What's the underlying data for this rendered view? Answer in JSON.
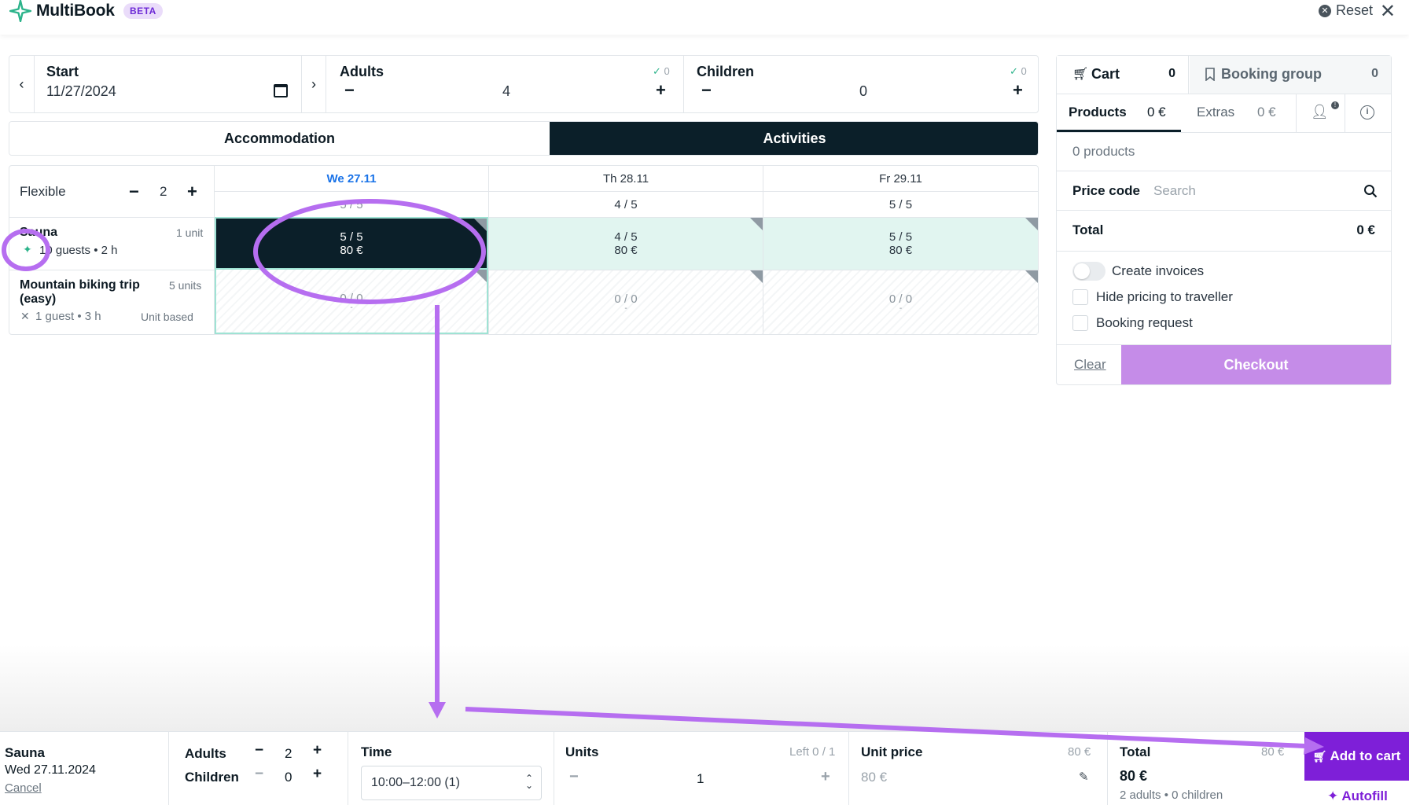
{
  "header": {
    "brand": "MultiBook",
    "badge": "BETA",
    "reset_label": "Reset"
  },
  "filter": {
    "start_label": "Start",
    "start_value": "11/27/2024",
    "adults_label": "Adults",
    "adults_value": "4",
    "adults_check": "0",
    "children_label": "Children",
    "children_value": "0",
    "children_check": "0"
  },
  "tabs": {
    "accommodation": "Accommodation",
    "activities": "Activities"
  },
  "grid": {
    "flexible_label": "Flexible",
    "flexible_value": "2",
    "days": [
      {
        "label": "We 27.11",
        "availability": "5 / 5"
      },
      {
        "label": "Th 28.11",
        "availability": "4 / 5"
      },
      {
        "label": "Fr 29.11",
        "availability": "5 / 5"
      }
    ],
    "resources": [
      {
        "name": "Sauna",
        "units": "1 unit",
        "meta": "10 guests • 2 h",
        "cells": [
          {
            "avail": "5 / 5",
            "price": "80 €"
          },
          {
            "avail": "4 / 5",
            "price": "80 €"
          },
          {
            "avail": "5 / 5",
            "price": "80 €"
          }
        ]
      },
      {
        "name_line1": "Mountain biking trip",
        "name_line2": "(easy)",
        "units": "5 units",
        "meta": "1 guest • 3 h",
        "badge": "Unit based",
        "cells": [
          {
            "avail": "0 / 0",
            "price": "-"
          },
          {
            "avail": "0 / 0",
            "price": "-"
          },
          {
            "avail": "0 / 0",
            "price": "-"
          }
        ]
      }
    ]
  },
  "cart": {
    "cart_label": "Cart",
    "cart_count": "0",
    "group_label": "Booking group",
    "group_count": "0",
    "products_label": "Products",
    "products_amount": "0 €",
    "extras_label": "Extras",
    "extras_amount": "0 €",
    "product_count": "0 products",
    "price_code_label": "Price code",
    "price_code_placeholder": "Search",
    "total_label": "Total",
    "total_value": "0 €",
    "create_invoices": "Create invoices",
    "hide_pricing": "Hide pricing to traveller",
    "booking_request": "Booking request",
    "clear": "Clear",
    "checkout": "Checkout"
  },
  "bottom": {
    "item_name": "Sauna",
    "item_date": "Wed 27.11.2024",
    "cancel": "Cancel",
    "adults_label": "Adults",
    "adults_value": "2",
    "children_label": "Children",
    "children_value": "0",
    "time_label": "Time",
    "time_value": "10:00–12:00 (1)",
    "units_label": "Units",
    "units_left": "Left 0 / 1",
    "units_value": "1",
    "unit_price_label": "Unit price",
    "unit_price_hint": "80 €",
    "unit_price_value": "80 €",
    "total_label": "Total",
    "total_hint": "80 €",
    "total_value": "80 €",
    "total_breakdown": "2 adults • 0 children",
    "add_to_cart": "Add to cart",
    "autofill": "Autofill"
  },
  "colors": {
    "accent_purple": "#7e1fd8",
    "annotation_purple": "#b66ef0",
    "dark_navy": "#0b1f29",
    "available_green": "#e1f5f0",
    "brand_teal": "#2bb38a"
  }
}
